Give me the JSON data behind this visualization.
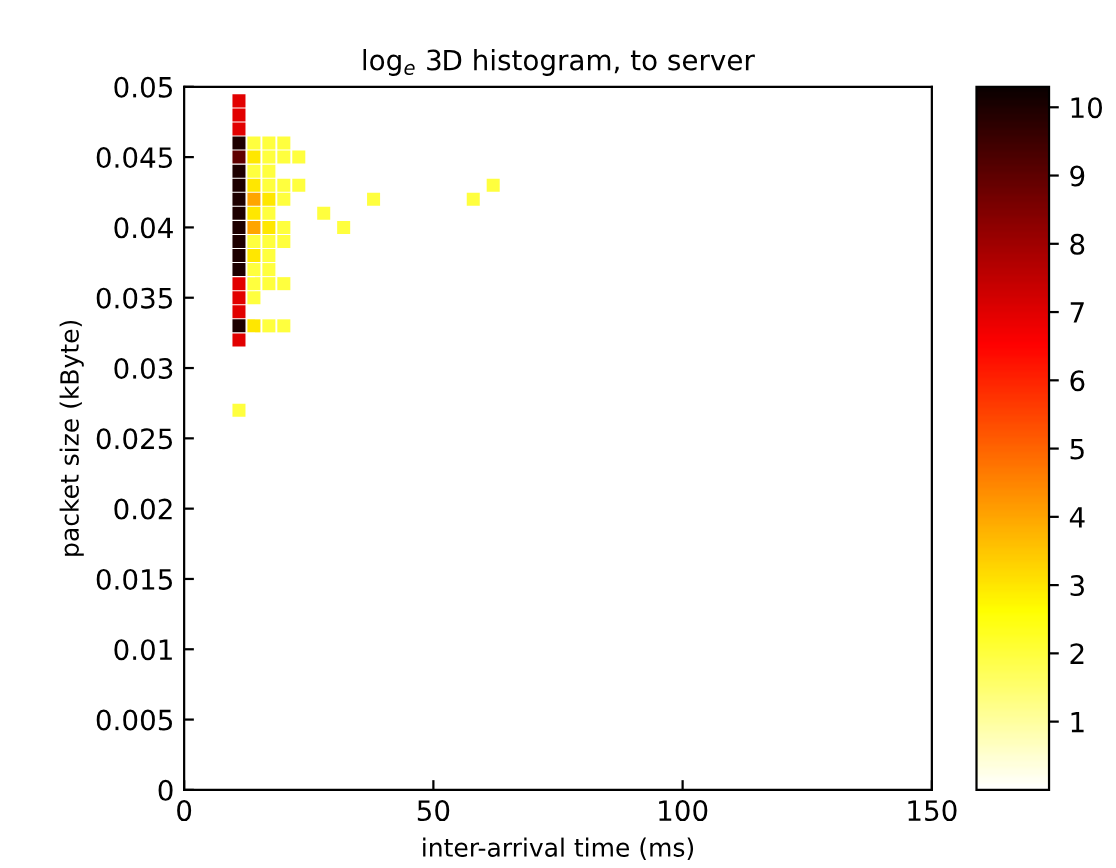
{
  "chart_data": {
    "type": "scatter",
    "title": "log$_{e}$ 3D histogram, to server",
    "xlabel": "inter-arrival time (ms)",
    "ylabel": "packet size (kByte)",
    "x": [
      11,
      11,
      11,
      11,
      11,
      11,
      11,
      11,
      11,
      11,
      11,
      11,
      11,
      11,
      11,
      11,
      11,
      11,
      14,
      17,
      20,
      14,
      17,
      20,
      23,
      14,
      17,
      14,
      17,
      20,
      23,
      14,
      17,
      20,
      14,
      17,
      14,
      17,
      20,
      14,
      17,
      20,
      14,
      17,
      14,
      17,
      14,
      17,
      20,
      14,
      14,
      17,
      20,
      11,
      28,
      32,
      38,
      58,
      62
    ],
    "values": [
      0.049,
      0.048,
      0.047,
      0.046,
      0.045,
      0.044,
      0.043,
      0.042,
      0.041,
      0.04,
      0.039,
      0.038,
      0.037,
      0.036,
      0.035,
      0.034,
      0.033,
      0.032,
      0.046,
      0.046,
      0.046,
      0.045,
      0.045,
      0.045,
      0.045,
      0.044,
      0.044,
      0.043,
      0.043,
      0.043,
      0.043,
      0.042,
      0.042,
      0.042,
      0.041,
      0.041,
      0.04,
      0.04,
      0.04,
      0.039,
      0.039,
      0.039,
      0.038,
      0.038,
      0.037,
      0.037,
      0.036,
      0.036,
      0.036,
      0.035,
      0.033,
      0.033,
      0.033,
      0.027,
      0.041,
      0.04,
      0.042,
      0.042,
      0.043
    ],
    "cvalues": [
      7,
      7,
      7,
      10,
      9,
      10,
      10,
      10,
      10,
      10,
      10,
      10,
      10,
      7,
      7,
      7,
      10,
      7,
      2,
      2,
      2,
      3,
      2,
      2,
      2,
      2,
      2,
      3,
      2,
      2,
      2,
      4,
      3,
      2,
      3,
      2,
      4,
      3,
      2,
      2,
      2,
      2,
      3,
      2,
      2,
      2,
      2,
      2,
      2,
      2,
      3,
      2,
      2,
      2,
      2,
      2,
      2,
      2,
      2
    ],
    "marker": "square",
    "xlim": [
      0,
      150
    ],
    "ylim": [
      0,
      0.05
    ],
    "xticks": [
      0,
      50,
      100,
      150
    ],
    "yticks": [
      0,
      0.005,
      0.01,
      0.015,
      0.02,
      0.025,
      0.03,
      0.035,
      0.04,
      0.045,
      0.05
    ],
    "clim": [
      0,
      10.3
    ],
    "cticks": [
      1,
      2,
      3,
      4,
      5,
      6,
      7,
      8,
      9,
      10
    ],
    "grid": false
  }
}
